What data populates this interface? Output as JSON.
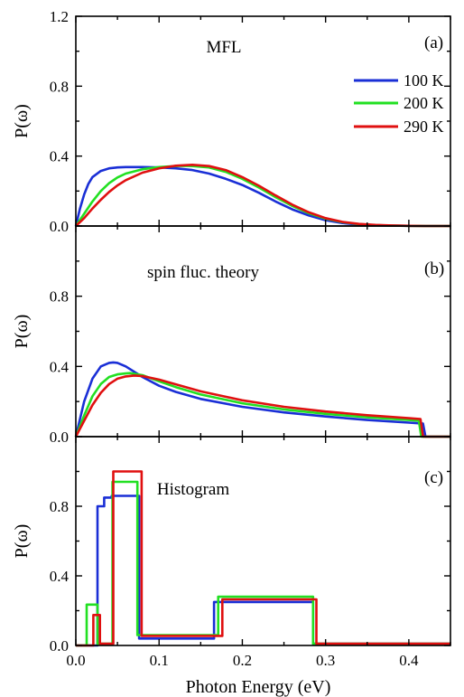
{
  "colors": {
    "100K": "#1a2fd6",
    "200K": "#22e022",
    "290K": "#e01010"
  },
  "chart_data": [
    {
      "type": "line",
      "annotation": "MFL",
      "panel_label": "(a)",
      "ylabel": "P(ω)",
      "xlim": [
        0,
        0.45
      ],
      "ylim": [
        0,
        1.2
      ],
      "yticks": [
        "0.0",
        "0.4",
        "0.8",
        "1.2"
      ],
      "grid": false,
      "legend": {
        "placement": "right",
        "entries": [
          "100 K",
          "200 K",
          "290 K"
        ]
      },
      "series": [
        {
          "name": "100 K",
          "color": "#1a2fd6",
          "x": [
            0,
            0.005,
            0.01,
            0.015,
            0.02,
            0.03,
            0.04,
            0.05,
            0.06,
            0.08,
            0.1,
            0.12,
            0.14,
            0.16,
            0.18,
            0.2,
            0.22,
            0.24,
            0.26,
            0.28,
            0.3,
            0.32,
            0.34,
            0.36,
            0.38,
            0.4,
            0.42,
            0.45
          ],
          "y": [
            0,
            0.1,
            0.18,
            0.24,
            0.28,
            0.315,
            0.33,
            0.335,
            0.337,
            0.337,
            0.335,
            0.33,
            0.32,
            0.3,
            0.27,
            0.235,
            0.19,
            0.14,
            0.095,
            0.06,
            0.033,
            0.017,
            0.008,
            0.004,
            0.002,
            0.001,
            0,
            0
          ]
        },
        {
          "name": "200 K",
          "color": "#22e022",
          "x": [
            0,
            0.01,
            0.02,
            0.03,
            0.04,
            0.05,
            0.06,
            0.08,
            0.1,
            0.12,
            0.13,
            0.14,
            0.16,
            0.18,
            0.2,
            0.22,
            0.24,
            0.26,
            0.28,
            0.3,
            0.32,
            0.34,
            0.36,
            0.38,
            0.4,
            0.42,
            0.45
          ],
          "y": [
            0,
            0.07,
            0.14,
            0.2,
            0.245,
            0.278,
            0.3,
            0.325,
            0.337,
            0.343,
            0.344,
            0.343,
            0.335,
            0.31,
            0.27,
            0.22,
            0.165,
            0.115,
            0.073,
            0.042,
            0.022,
            0.011,
            0.005,
            0.002,
            0.001,
            0,
            0
          ]
        },
        {
          "name": "290 K",
          "color": "#e01010",
          "x": [
            0,
            0.01,
            0.02,
            0.03,
            0.04,
            0.05,
            0.06,
            0.08,
            0.1,
            0.12,
            0.14,
            0.16,
            0.18,
            0.2,
            0.22,
            0.24,
            0.26,
            0.28,
            0.3,
            0.32,
            0.34,
            0.36,
            0.38,
            0.4,
            0.42,
            0.45
          ],
          "y": [
            0,
            0.045,
            0.1,
            0.15,
            0.195,
            0.232,
            0.262,
            0.305,
            0.33,
            0.345,
            0.35,
            0.343,
            0.32,
            0.28,
            0.23,
            0.175,
            0.122,
            0.078,
            0.045,
            0.024,
            0.012,
            0.006,
            0.003,
            0.001,
            0,
            0
          ]
        }
      ]
    },
    {
      "type": "line",
      "annotation": "spin fluc. theory",
      "panel_label": "(b)",
      "ylabel": "P(ω)",
      "xlim": [
        0,
        0.45
      ],
      "ylim": [
        0,
        1.2
      ],
      "yticks": [
        "0.0",
        "0.4",
        "0.8"
      ],
      "grid": false,
      "series": [
        {
          "name": "100 K",
          "color": "#1a2fd6",
          "x": [
            0,
            0.005,
            0.01,
            0.02,
            0.03,
            0.04,
            0.045,
            0.05,
            0.06,
            0.08,
            0.1,
            0.12,
            0.15,
            0.2,
            0.25,
            0.3,
            0.35,
            0.4,
            0.417,
            0.42,
            0.45
          ],
          "y": [
            0,
            0.1,
            0.2,
            0.33,
            0.4,
            0.42,
            0.423,
            0.42,
            0.4,
            0.34,
            0.29,
            0.255,
            0.215,
            0.17,
            0.138,
            0.115,
            0.095,
            0.08,
            0.074,
            0,
            0
          ]
        },
        {
          "name": "200 K",
          "color": "#22e022",
          "x": [
            0,
            0.01,
            0.02,
            0.03,
            0.04,
            0.05,
            0.06,
            0.065,
            0.08,
            0.1,
            0.12,
            0.15,
            0.2,
            0.25,
            0.3,
            0.35,
            0.4,
            0.412,
            0.415,
            0.45
          ],
          "y": [
            0,
            0.12,
            0.23,
            0.3,
            0.34,
            0.355,
            0.36,
            0.362,
            0.35,
            0.315,
            0.282,
            0.24,
            0.19,
            0.155,
            0.13,
            0.11,
            0.095,
            0.09,
            0,
            0
          ]
        },
        {
          "name": "290 K",
          "color": "#e01010",
          "x": [
            0,
            0.01,
            0.02,
            0.03,
            0.04,
            0.05,
            0.06,
            0.07,
            0.08,
            0.1,
            0.12,
            0.15,
            0.2,
            0.25,
            0.3,
            0.35,
            0.4,
            0.414,
            0.417,
            0.45
          ],
          "y": [
            0,
            0.09,
            0.18,
            0.25,
            0.3,
            0.33,
            0.343,
            0.348,
            0.345,
            0.325,
            0.298,
            0.258,
            0.207,
            0.17,
            0.143,
            0.122,
            0.105,
            0.1,
            0,
            0
          ]
        }
      ]
    },
    {
      "type": "line",
      "annotation": "Histogram",
      "panel_label": "(c)",
      "ylabel": "P(ω)",
      "xlabel": "Photon Energy (eV)",
      "xlim": [
        0,
        0.45
      ],
      "ylim": [
        0,
        1.2
      ],
      "xticks": [
        "0.0",
        "0.1",
        "0.2",
        "0.3",
        "0.4"
      ],
      "yticks": [
        "0.0",
        "0.4",
        "0.8"
      ],
      "grid": false,
      "step": true,
      "series": [
        {
          "name": "100 K",
          "color": "#1a2fd6",
          "x": [
            0,
            0.026,
            0.026,
            0.034,
            0.034,
            0.043,
            0.043,
            0.076,
            0.076,
            0.166,
            0.166,
            0.285,
            0.285,
            0.45
          ],
          "y": [
            0,
            0,
            0.8,
            0.8,
            0.85,
            0.85,
            0.86,
            0.86,
            0.04,
            0.04,
            0.25,
            0.25,
            0.01,
            0.01
          ]
        },
        {
          "name": "200 K",
          "color": "#22e022",
          "x": [
            0,
            0.013,
            0.013,
            0.026,
            0.026,
            0.044,
            0.044,
            0.074,
            0.074,
            0.171,
            0.171,
            0.285,
            0.285,
            0.45
          ],
          "y": [
            0,
            0,
            0.235,
            0.235,
            0.01,
            0.01,
            0.94,
            0.94,
            0.06,
            0.06,
            0.28,
            0.28,
            0.01,
            0.01
          ]
        },
        {
          "name": "290 K",
          "color": "#e01010",
          "x": [
            0,
            0.021,
            0.021,
            0.029,
            0.029,
            0.045,
            0.045,
            0.079,
            0.079,
            0.176,
            0.176,
            0.289,
            0.289,
            0.45
          ],
          "y": [
            0,
            0,
            0.175,
            0.175,
            0.01,
            0.01,
            1.0,
            1.0,
            0.055,
            0.055,
            0.265,
            0.265,
            0.01,
            0.01
          ]
        }
      ]
    }
  ]
}
